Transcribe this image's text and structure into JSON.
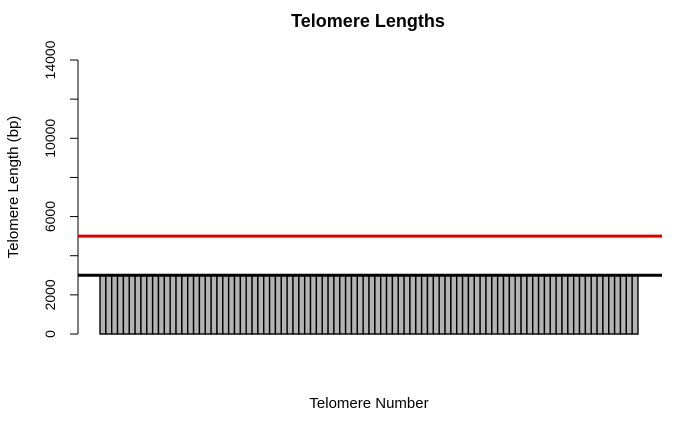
{
  "chart_data": {
    "type": "bar",
    "title": "Telomere Lengths",
    "xlabel": "Telomere Number",
    "ylabel": "Telomere Length (bp)",
    "ylim": [
      0,
      14000
    ],
    "yticks": [
      0,
      2000,
      6000,
      10000,
      14000
    ],
    "ytick_labels": [
      "0",
      "2000",
      "6000",
      "10000",
      "14000"
    ],
    "minor_yticks": [
      4000,
      8000,
      12000
    ],
    "grid": false,
    "legend": null,
    "bar_fill": "#b3b3b3",
    "bar_stroke": "#000000",
    "values": [
      3000,
      3000,
      3000,
      3000,
      3000,
      3000,
      3000,
      3000,
      3000,
      3000,
      3000,
      3000,
      3000,
      3000,
      3000,
      3000,
      3000,
      3000,
      3000,
      3000,
      3000,
      3000,
      3000,
      3000,
      3000,
      3000,
      3000,
      3000,
      3000,
      3000,
      3000,
      3000,
      3000,
      3000,
      3000,
      3000,
      3000,
      3000,
      3000,
      3000,
      3000,
      3000,
      3000,
      3000,
      3000,
      3000,
      3000,
      3000,
      3000,
      3000,
      3000,
      3000,
      3000,
      3000,
      3000,
      3000,
      3000,
      3000,
      3000,
      3000,
      3000,
      3000,
      3000,
      3000,
      3000,
      3000,
      3000,
      3000,
      3000,
      3000,
      3000,
      3000,
      3000,
      3000,
      3000,
      3000,
      3000,
      3000,
      3000,
      3000,
      3000,
      3000,
      3000,
      3000,
      3000,
      3000,
      3000,
      3000,
      3000,
      3000,
      3000,
      3000
    ],
    "reference_lines": [
      {
        "y": 5000,
        "color": "#dd0000"
      },
      {
        "y": 3000,
        "color": "#000000"
      }
    ]
  }
}
